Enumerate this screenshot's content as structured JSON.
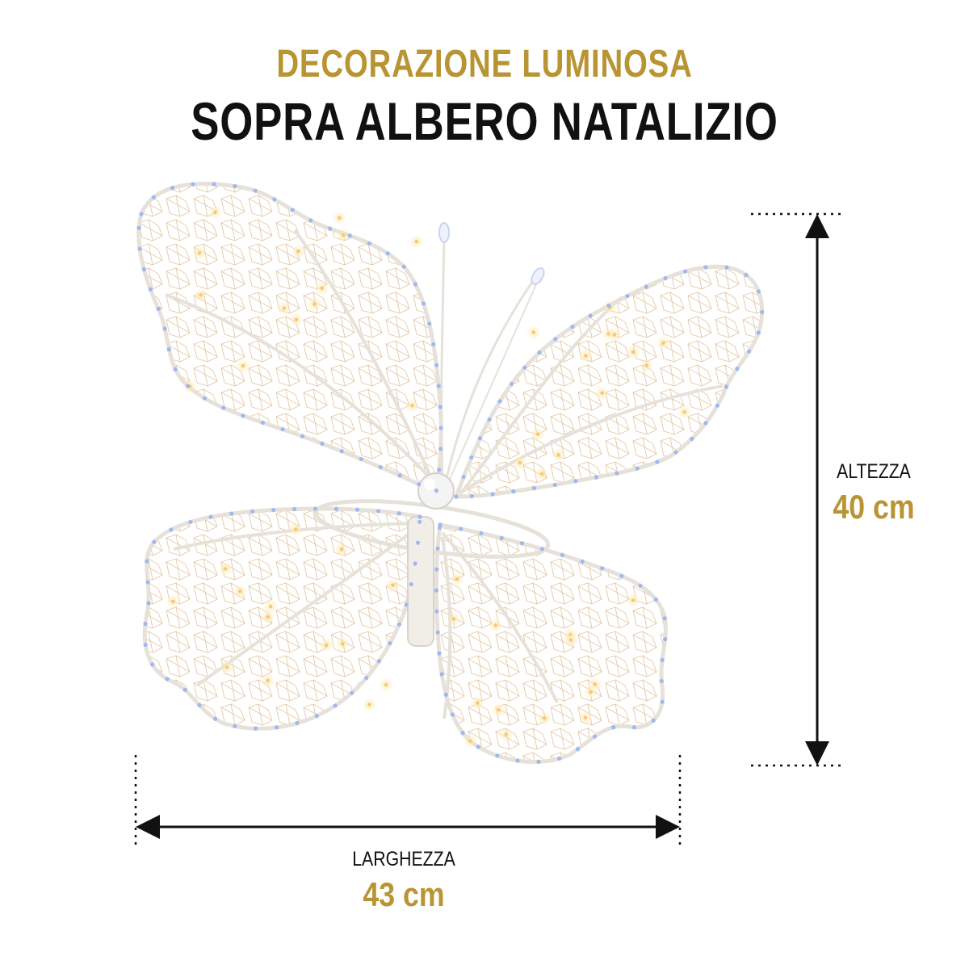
{
  "header": {
    "subtitle": "DECORAZIONE LUMINOSA",
    "title": "SOPRA ALBERO NATALIZIO"
  },
  "dimensions": {
    "height_label": "ALTEZZA",
    "height_value": "40 cm",
    "width_label": "LARGHEZZA",
    "width_value": "43 cm"
  },
  "colors": {
    "accent_gold": "#b89433",
    "title_black": "#111111",
    "wire_white": "#e9e6df",
    "led_warm": "#f3c978",
    "led_cool": "#9fb8f2"
  },
  "image": {
    "subject": "butterfly-shaped wire LED ornament"
  }
}
